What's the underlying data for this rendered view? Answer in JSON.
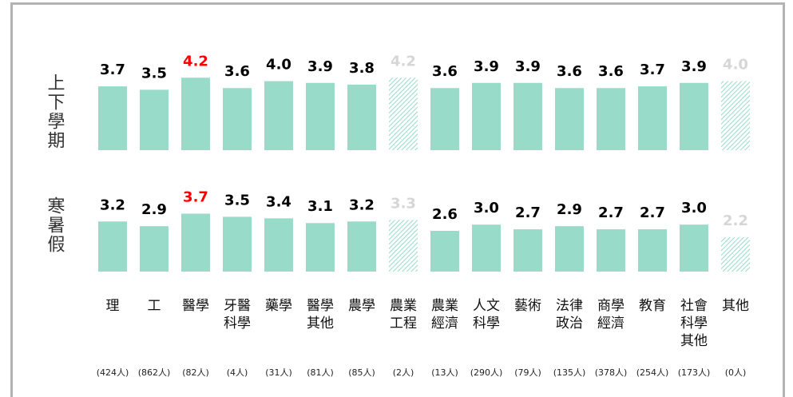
{
  "chart_data": {
    "type": "bar",
    "categories": [
      "理",
      "工",
      "醫學",
      "牙醫\n科學",
      "藥學",
      "醫學\n其他",
      "農學",
      "農業\n工程",
      "農業\n經濟",
      "人文\n科學",
      "藝術",
      "法律\n政治",
      "商學\n經濟",
      "教育",
      "社會\n科學\n其他",
      "其他"
    ],
    "sample_sizes": [
      "(424人)",
      "(862人)",
      "(82人)",
      "(4人)",
      "(31人)",
      "(81人)",
      "(85人)",
      "(2人)",
      "(13人)",
      "(290人)",
      "(79人)",
      "(135人)",
      "(378人)",
      "(254人)",
      "(173人)",
      "(0人)"
    ],
    "series": [
      {
        "name": "上下學期",
        "values": [
          3.7,
          3.5,
          4.2,
          3.6,
          4.0,
          3.9,
          3.8,
          4.2,
          3.6,
          3.9,
          3.9,
          3.6,
          3.6,
          3.7,
          3.9,
          4.0
        ],
        "value_labels": [
          "3.7",
          "3.5",
          "4.2",
          "3.6",
          "4.0",
          "3.9",
          "3.8",
          "4.2",
          "3.6",
          "3.9",
          "3.9",
          "3.6",
          "3.6",
          "3.7",
          "3.9",
          "4.0"
        ]
      },
      {
        "name": "寒暑假",
        "values": [
          3.2,
          2.9,
          3.7,
          3.5,
          3.4,
          3.1,
          3.2,
          3.3,
          2.6,
          3.0,
          2.7,
          2.9,
          2.7,
          2.7,
          3.0,
          2.2
        ],
        "value_labels": [
          "3.2",
          "2.9",
          "3.7",
          "3.5",
          "3.4",
          "3.1",
          "3.2",
          "3.3",
          "2.6",
          "3.0",
          "2.7",
          "2.9",
          "2.7",
          "2.7",
          "3.0",
          "2.2"
        ]
      }
    ],
    "color": "#97dbc8",
    "label_color": "#000000",
    "highlight_index": 2,
    "highlight_color": "#ff0000",
    "faded_indices": [
      7,
      15
    ],
    "faded_color": "#d6d6d6",
    "ylim": [
      0,
      5
    ]
  }
}
